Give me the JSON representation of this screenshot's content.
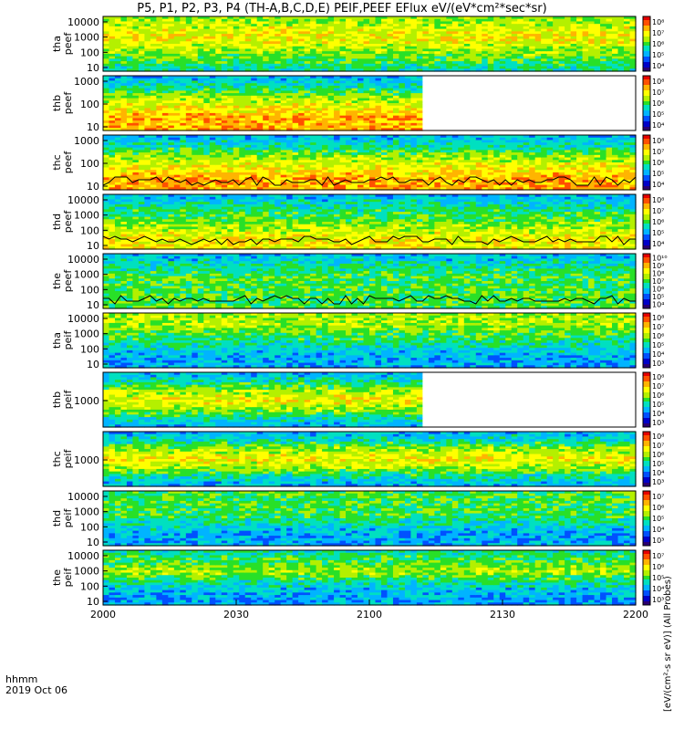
{
  "title": "P5, P1, P2, P3, P4 (TH-A,B,C,D,E) PEIF,PEEF EFlux eV/(eV*cm²*sec*sr)",
  "colorbar_unit": "[eV/(cm²-s sr eV)] (All Probes)",
  "x_axis": {
    "hhmm_label": "hhmm",
    "date_label": "2019 Oct 06",
    "ticks": [
      "2000",
      "2030",
      "2100",
      "2130",
      "2200"
    ]
  },
  "chart_data": [
    {
      "type": "heatmap",
      "ylabel": "tha\npeef",
      "y_ticks": [
        "10",
        "100",
        "1000",
        "10000"
      ],
      "colorbar_ticks": [
        "10⁴",
        "10⁵",
        "10⁶",
        "10⁷",
        "10⁸"
      ],
      "profile": [
        4,
        5,
        6,
        7,
        6.5,
        5.5
      ],
      "data_end_fraction": 1.0,
      "overlay": false
    },
    {
      "type": "heatmap",
      "ylabel": "thb\npeef",
      "y_ticks": [
        "10",
        "100",
        "1000"
      ],
      "colorbar_ticks": [
        "10⁴",
        "10⁵",
        "10⁶",
        "10⁷",
        "10⁸"
      ],
      "profile": [
        8,
        8,
        7,
        6,
        4,
        3
      ],
      "data_end_fraction": 0.6,
      "overlay": false
    },
    {
      "type": "heatmap",
      "ylabel": "thc\npeef",
      "y_ticks": [
        "10",
        "100",
        "1000"
      ],
      "colorbar_ticks": [
        "10⁴",
        "10⁵",
        "10⁶",
        "10⁷",
        "10⁸"
      ],
      "profile": [
        8,
        8,
        7,
        6,
        4,
        3
      ],
      "data_end_fraction": 1.0,
      "overlay": true
    },
    {
      "type": "heatmap",
      "ylabel": "thd\npeef",
      "y_ticks": [
        "10",
        "100",
        "1000",
        "10000"
      ],
      "colorbar_ticks": [
        "10⁴",
        "10⁵",
        "10⁶",
        "10⁷",
        "10⁸"
      ],
      "profile": [
        7,
        7,
        6,
        5,
        4,
        3
      ],
      "data_end_fraction": 1.0,
      "overlay": true
    },
    {
      "type": "heatmap",
      "ylabel": "the\npeef",
      "y_ticks": [
        "10",
        "100",
        "1000",
        "10000"
      ],
      "colorbar_ticks": [
        "10⁴",
        "10⁵",
        "10⁶",
        "10⁷",
        "10⁸",
        "10⁹",
        "10¹⁰"
      ],
      "profile": [
        5,
        5,
        5,
        5,
        4,
        3
      ],
      "data_end_fraction": 1.0,
      "overlay": true
    },
    {
      "type": "heatmap",
      "ylabel": "tha\npeif",
      "y_ticks": [
        "10",
        "100",
        "1000",
        "10000"
      ],
      "colorbar_ticks": [
        "10³",
        "10⁴",
        "10⁵",
        "10⁶",
        "10⁷",
        "10⁸"
      ],
      "profile": [
        3,
        3,
        4,
        5,
        6,
        6
      ],
      "data_end_fraction": 1.0,
      "overlay": false
    },
    {
      "type": "heatmap",
      "ylabel": "thb\npeif",
      "y_ticks": [
        "1000"
      ],
      "colorbar_ticks": [
        "10³",
        "10⁴",
        "10⁵",
        "10⁶",
        "10⁷",
        "10⁸"
      ],
      "profile": [
        3,
        4,
        6,
        7,
        6,
        4,
        3
      ],
      "data_end_fraction": 0.6,
      "overlay": false
    },
    {
      "type": "heatmap",
      "ylabel": "thc\npeif",
      "y_ticks": [
        "1000"
      ],
      "colorbar_ticks": [
        "10³",
        "10⁴",
        "10⁵",
        "10⁶",
        "10⁷",
        "10⁸"
      ],
      "profile": [
        3,
        4,
        6,
        7,
        6,
        4,
        3
      ],
      "data_end_fraction": 1.0,
      "overlay": false
    },
    {
      "type": "heatmap",
      "ylabel": "thd\npeif",
      "y_ticks": [
        "10",
        "100",
        "1000",
        "10000"
      ],
      "colorbar_ticks": [
        "10³",
        "10⁴",
        "10⁵",
        "10⁶",
        "10⁷"
      ],
      "profile": [
        3,
        3,
        4,
        5,
        5,
        5
      ],
      "data_end_fraction": 1.0,
      "overlay": false
    },
    {
      "type": "heatmap",
      "ylabel": "the\npeif",
      "y_ticks": [
        "10",
        "100",
        "1000",
        "10000"
      ],
      "colorbar_ticks": [
        "10³",
        "10⁴",
        "10⁵",
        "10⁶",
        "10⁷"
      ],
      "profile": [
        3,
        3,
        4,
        6,
        5,
        4
      ],
      "data_end_fraction": 1.0,
      "overlay": false
    }
  ]
}
